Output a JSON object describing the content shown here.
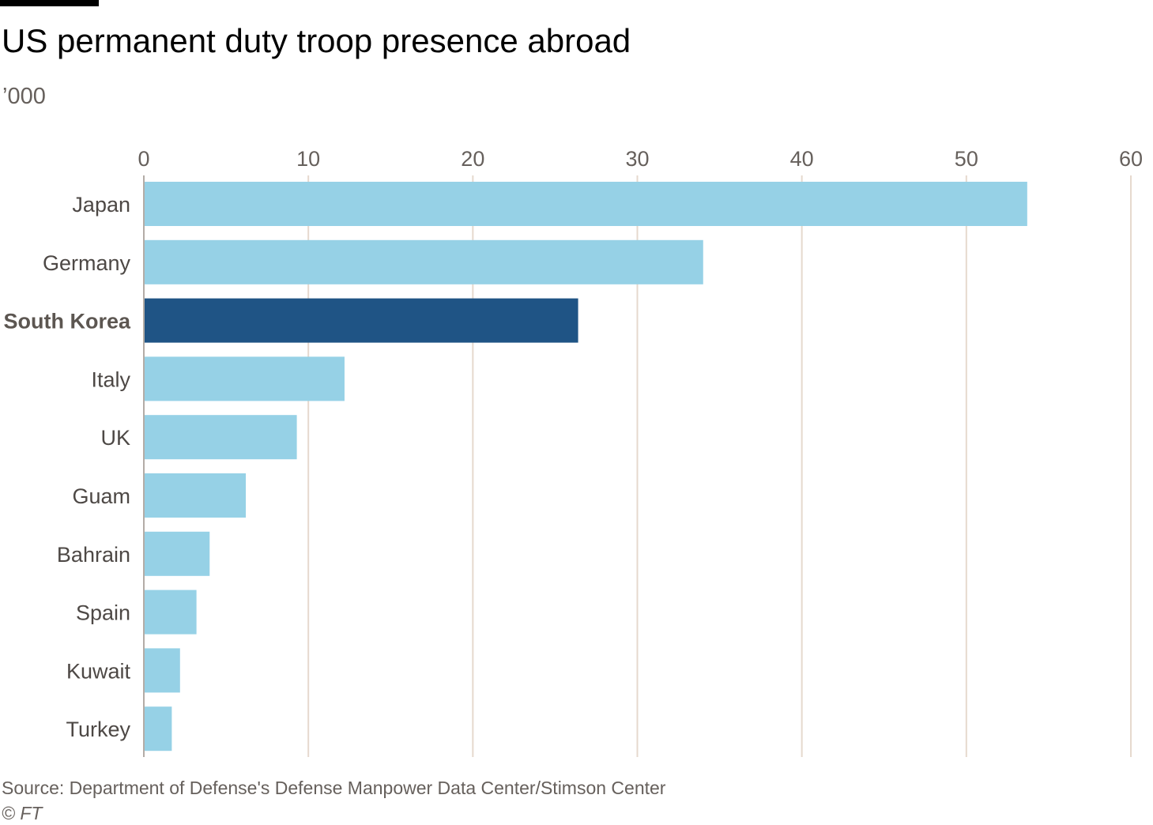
{
  "header": {
    "title": "US permanent duty troop presence abroad",
    "subtitle": "’000"
  },
  "footer": {
    "source": "Source: Department of Defense's Defense Manpower Data Center/Stimson Center",
    "credit": "© FT"
  },
  "colors": {
    "bar": "#96d1e6",
    "highlight": "#1f5485",
    "grid": "#e6d9ce",
    "axis": "#b3aca6",
    "tick_text": "#66605c",
    "label_text": "#4d4845"
  },
  "chart_data": {
    "type": "bar",
    "orientation": "horizontal",
    "categories": [
      "Japan",
      "Germany",
      "South Korea",
      "Italy",
      "UK",
      "Guam",
      "Bahrain",
      "Spain",
      "Kuwait",
      "Turkey"
    ],
    "values": [
      53.7,
      34.0,
      26.4,
      12.2,
      9.3,
      6.2,
      4.0,
      3.2,
      2.2,
      1.7
    ],
    "highlight": "South Korea",
    "xlim": [
      0,
      60
    ],
    "xticks": [
      "0",
      "10",
      "20",
      "30",
      "40",
      "50",
      "60"
    ],
    "grid": true,
    "axis_position": "top"
  }
}
